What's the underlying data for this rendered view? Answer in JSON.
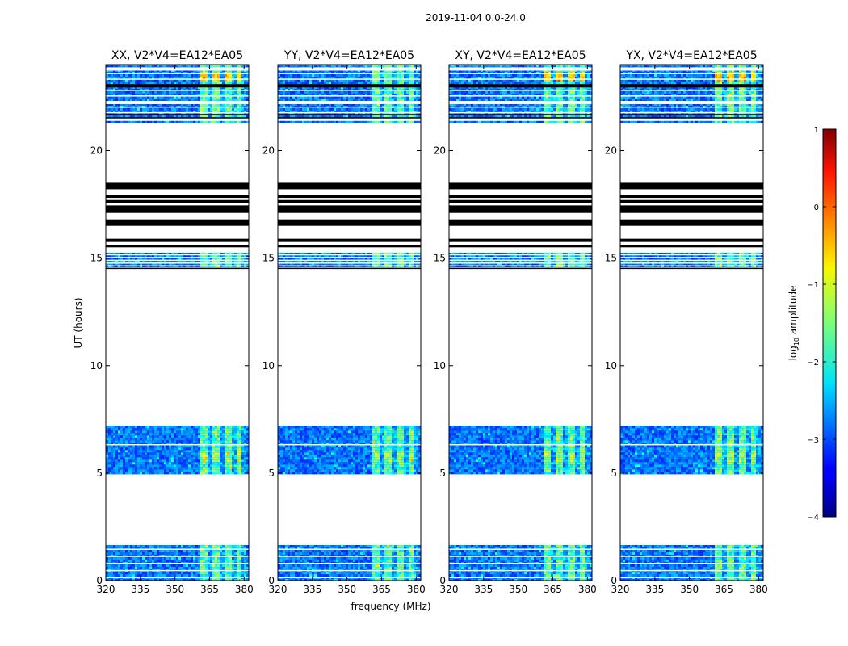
{
  "chart_data": {
    "type": "heatmap",
    "suptitle": "2019-11-04 0.0-24.0",
    "xlabel": "frequency (MHz)",
    "ylabel": "UT (hours)",
    "xlim": [
      320,
      382
    ],
    "ylim": [
      0,
      24
    ],
    "xticks": [
      320,
      335,
      350,
      365,
      380
    ],
    "yticks": [
      0,
      5,
      10,
      15,
      20
    ],
    "panels": [
      {
        "title": "XX, V2*V4=EA12*EA05",
        "pol": "XX"
      },
      {
        "title": "YY, V2*V4=EA12*EA05",
        "pol": "YY"
      },
      {
        "title": "XY, V2*V4=EA12*EA05",
        "pol": "XY"
      },
      {
        "title": "YX, V2*V4=EA12*EA05",
        "pol": "YX"
      }
    ],
    "data_blocks_hours": [
      {
        "start": 0.0,
        "end": 1.65,
        "level": "low"
      },
      {
        "start": 4.95,
        "end": 7.2,
        "level": "low",
        "gap_at": 6.35
      },
      {
        "start": 14.6,
        "end": 15.25,
        "level": "low"
      },
      {
        "start": 21.4,
        "end": 24.0,
        "level": "low"
      }
    ],
    "rfi_band_mhz": [
      360,
      380
    ],
    "black_bands_hours": [
      [
        18.2,
        18.5
      ],
      [
        17.8,
        17.95
      ],
      [
        17.55,
        17.7
      ],
      [
        17.1,
        17.45
      ],
      [
        16.5,
        16.8
      ],
      [
        15.75,
        15.9
      ],
      [
        15.5,
        15.6
      ]
    ],
    "colorbar": {
      "label": "log",
      "label_sub": "10",
      "label_rest": " amplitude",
      "range": [
        -4,
        1
      ],
      "ticks": [
        -4,
        -3,
        -2,
        -1,
        0,
        1
      ],
      "tick_labels": [
        "−4",
        "−3",
        "−2",
        "−1",
        "0",
        "1"
      ],
      "colormap": "jet"
    }
  }
}
